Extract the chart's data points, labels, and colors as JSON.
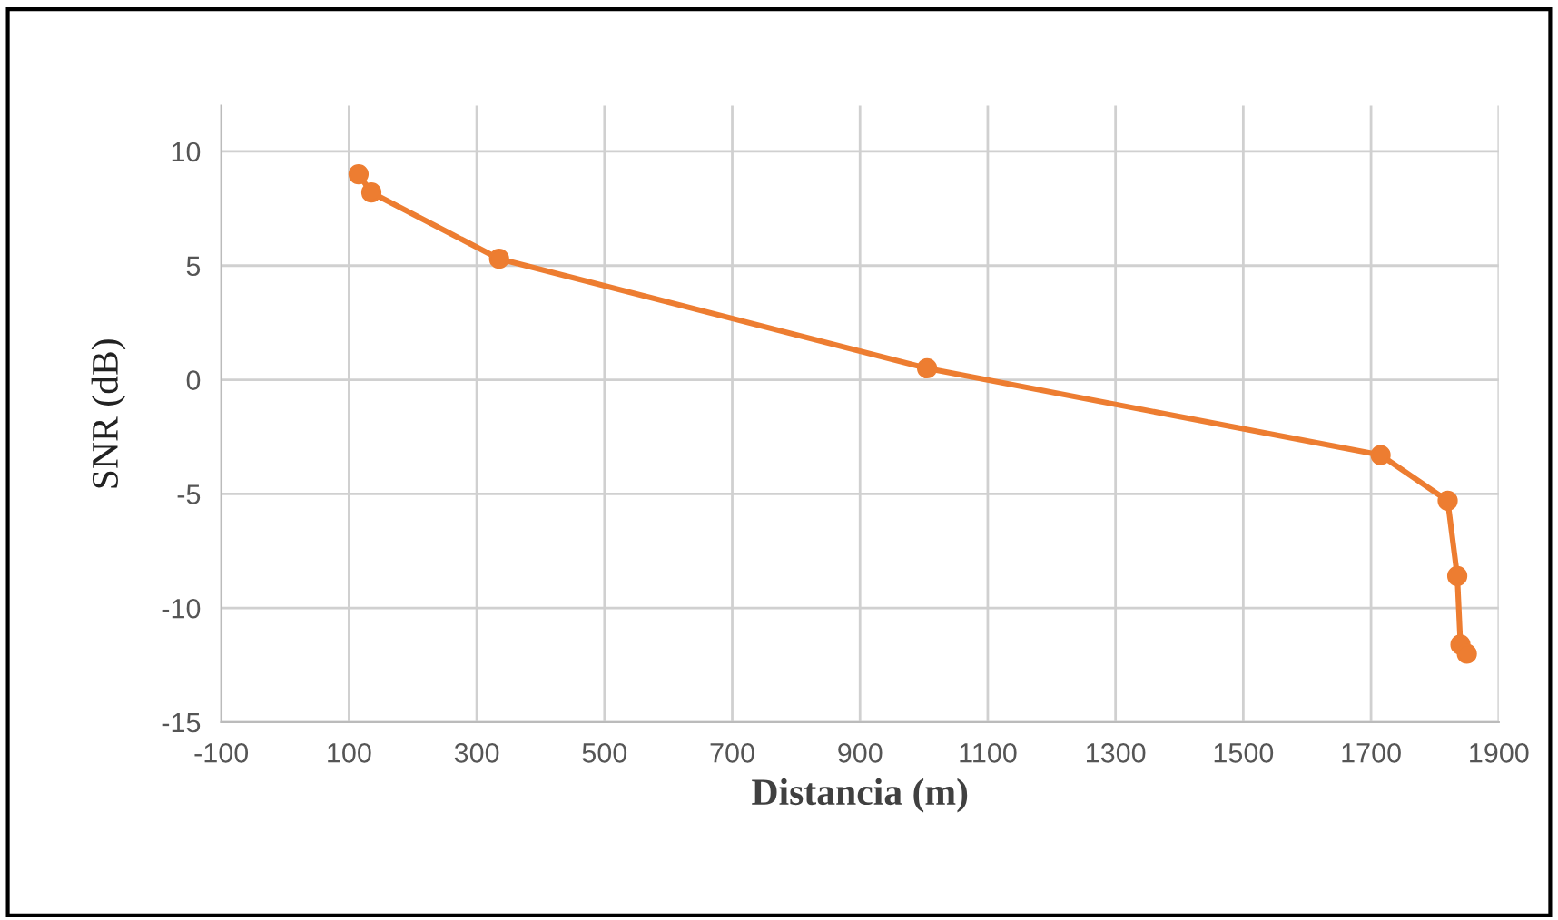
{
  "chart_data": {
    "type": "line",
    "xlabel": "Distancia (m)",
    "ylabel": "SNR (dB)",
    "series": [
      {
        "color": "#ed7d31",
        "x": [
          115,
          135,
          335,
          1005,
          1715,
          1820,
          1835,
          1840,
          1850
        ],
        "values": [
          9.0,
          8.2,
          5.3,
          0.5,
          -3.3,
          -5.3,
          -8.6,
          -11.6,
          -12.0
        ]
      }
    ],
    "xlim": [
      -100,
      1900
    ],
    "xticks": [
      -100,
      100,
      300,
      500,
      700,
      900,
      1100,
      1300,
      1500,
      1700,
      1900
    ],
    "ylim": [
      -15,
      12
    ],
    "yticks": [
      -15,
      -10,
      -5,
      0,
      5,
      10
    ],
    "grid": true,
    "marker": "circle",
    "line_style": "solid"
  }
}
